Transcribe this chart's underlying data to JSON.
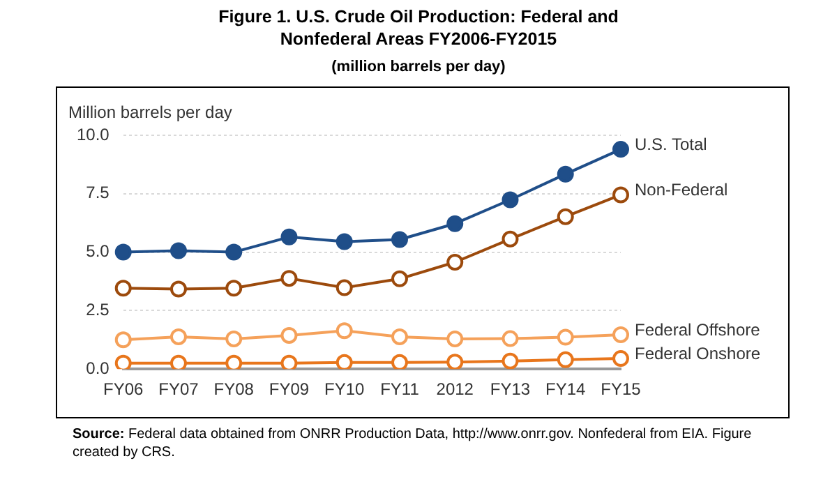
{
  "chart_data": {
    "type": "line",
    "title": "Figure 1. U.S. Crude Oil Production: Federal and Nonfederal Areas FY2006-FY2015",
    "subtitle": "(million barrels per day)",
    "ylabel": "Million barrels per day",
    "categories": [
      "FY06",
      "FY07",
      "FY08",
      "FY09",
      "FY10",
      "FY11",
      "2012",
      "FY13",
      "FY14",
      "FY15"
    ],
    "series": [
      {
        "name": "U.S. Total",
        "color": "#1f4e89",
        "values": [
          5.0,
          5.06,
          5.0,
          5.65,
          5.45,
          5.54,
          6.22,
          7.24,
          8.34,
          9.4
        ]
      },
      {
        "name": "Non-Federal",
        "color": "#9c4a0c",
        "values": [
          3.46,
          3.42,
          3.46,
          3.88,
          3.48,
          3.86,
          4.57,
          5.56,
          6.52,
          7.45
        ]
      },
      {
        "name": "Federal Offshore",
        "color": "#f5a15a",
        "values": [
          1.25,
          1.38,
          1.29,
          1.44,
          1.64,
          1.38,
          1.29,
          1.3,
          1.36,
          1.47
        ]
      },
      {
        "name": "Federal Onshore",
        "color": "#e8761c",
        "values": [
          0.25,
          0.25,
          0.25,
          0.25,
          0.28,
          0.28,
          0.3,
          0.34,
          0.4,
          0.45
        ]
      }
    ],
    "ylim": [
      0,
      10
    ],
    "yticks": [
      {
        "value": 0,
        "label": "0.0"
      },
      {
        "value": 2.5,
        "label": "2.5"
      },
      {
        "value": 5,
        "label": "5.0"
      },
      {
        "value": 7.5,
        "label": "7.5"
      },
      {
        "value": 10,
        "label": "10.0"
      }
    ],
    "grid": "y",
    "legend": false,
    "marker": "circle",
    "line_style": "solid",
    "annotations": [
      "Source: Federal data obtained from ONRR Production Data, http://www.onrr.gov. Nonfederal from EIA. Figure created by CRS."
    ]
  }
}
